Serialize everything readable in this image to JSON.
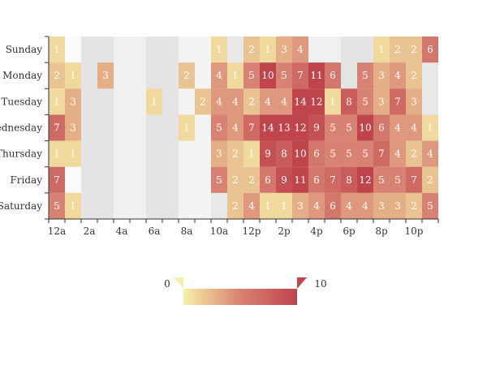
{
  "chart_data": {
    "type": "heatmap",
    "title": "",
    "xlabel": "",
    "ylabel": "",
    "x_categories": [
      "12a",
      "1a",
      "2a",
      "3a",
      "4a",
      "5a",
      "6a",
      "7a",
      "8a",
      "9a",
      "10a",
      "11a",
      "12p",
      "1p",
      "2p",
      "3p",
      "4p",
      "5p",
      "6p",
      "7p",
      "8p",
      "9p",
      "10p",
      "11p"
    ],
    "x_tick_labels": [
      "12a",
      "2a",
      "4a",
      "6a",
      "8a",
      "10a",
      "12p",
      "2p",
      "4p",
      "6p",
      "8p",
      "10p"
    ],
    "y_categories": [
      "Sunday",
      "Monday",
      "Tuesday",
      "Wednesday",
      "Thursday",
      "Friday",
      "Saturday"
    ],
    "values": [
      [
        1,
        0,
        0,
        0,
        0,
        0,
        0,
        0,
        0,
        0,
        1,
        0,
        2,
        1,
        3,
        4,
        0,
        0,
        0,
        0,
        1,
        2,
        2,
        6
      ],
      [
        2,
        1,
        0,
        3,
        0,
        0,
        0,
        0,
        2,
        0,
        4,
        1,
        5,
        10,
        5,
        7,
        11,
        6,
        0,
        5,
        3,
        4,
        2,
        0
      ],
      [
        1,
        3,
        0,
        0,
        0,
        0,
        1,
        0,
        0,
        2,
        4,
        4,
        2,
        4,
        4,
        14,
        12,
        1,
        8,
        5,
        3,
        7,
        3,
        0
      ],
      [
        7,
        3,
        0,
        0,
        0,
        0,
        0,
        0,
        1,
        0,
        5,
        4,
        7,
        14,
        13,
        12,
        9,
        5,
        5,
        10,
        6,
        4,
        4,
        1
      ],
      [
        1,
        1,
        0,
        0,
        0,
        0,
        0,
        0,
        0,
        0,
        3,
        2,
        1,
        9,
        8,
        10,
        6,
        5,
        5,
        5,
        7,
        4,
        2,
        4
      ],
      [
        7,
        0,
        0,
        0,
        0,
        0,
        0,
        0,
        0,
        0,
        5,
        2,
        2,
        6,
        9,
        11,
        6,
        7,
        8,
        12,
        5,
        5,
        7,
        2
      ],
      [
        5,
        1,
        0,
        0,
        0,
        0,
        0,
        0,
        0,
        0,
        0,
        2,
        4,
        1,
        1,
        3,
        4,
        6,
        4,
        4,
        3,
        3,
        2,
        5
      ]
    ],
    "visual_map": {
      "min": 0,
      "max": 10,
      "min_label": "0",
      "max_label": "10",
      "colors": [
        "#f6efa6",
        "#d88273",
        "#bf444c"
      ]
    },
    "split_area_colors": [
      "#fafafa",
      "#e4e4e4",
      "#f0f0f0",
      "#e4e4e4",
      "#f4f4f4",
      "#e8e8e8"
    ],
    "colors": {
      "axis": "#333333",
      "label_dark": "#333333",
      "label_light": "#ffffff"
    }
  }
}
